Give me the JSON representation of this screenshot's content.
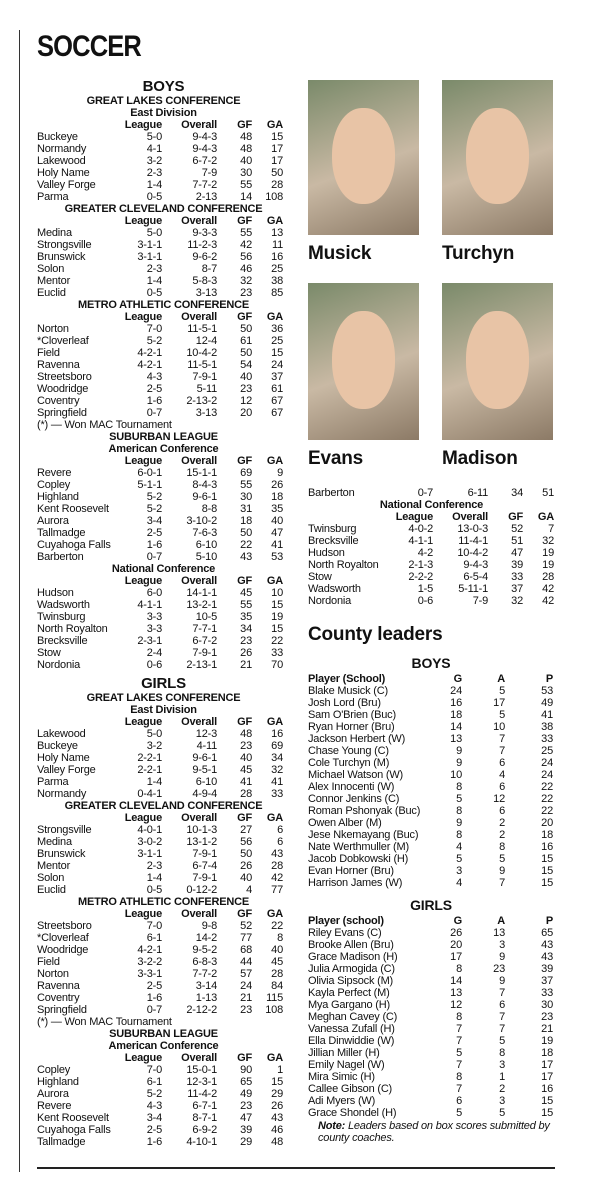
{
  "header": {
    "title": "SOCCER"
  },
  "boys": {
    "heading": "BOYS",
    "sections": [
      {
        "title": "GREAT LAKES CONFERENCE",
        "subtitle": "East Division",
        "columns": [
          "League",
          "Overall",
          "GF",
          "GA"
        ],
        "rows": [
          [
            "Buckeye",
            "5-0",
            "9-4-3",
            48,
            15
          ],
          [
            "Normandy",
            "4-1",
            "9-4-3",
            48,
            17
          ],
          [
            "Lakewood",
            "3-2",
            "6-7-2",
            40,
            17
          ],
          [
            "Holy Name",
            "2-3",
            "7-9",
            30,
            50
          ],
          [
            "Valley Forge",
            "1-4",
            "7-7-2",
            55,
            28
          ],
          [
            "Parma",
            "0-5",
            "2-13",
            14,
            108
          ]
        ]
      },
      {
        "title": "GREATER CLEVELAND CONFERENCE",
        "columns": [
          "League",
          "Overall",
          "GF",
          "GA"
        ],
        "rows": [
          [
            "Medina",
            "5-0",
            "9-3-3",
            55,
            13
          ],
          [
            "Strongsville",
            "3-1-1",
            "11-2-3",
            42,
            11
          ],
          [
            "Brunswick",
            "3-1-1",
            "9-6-2",
            56,
            16
          ],
          [
            "Solon",
            "2-3",
            "8-7",
            46,
            25
          ],
          [
            "Mentor",
            "1-4",
            "5-8-3",
            32,
            38
          ],
          [
            "Euclid",
            "0-5",
            "3-13",
            23,
            85
          ]
        ]
      },
      {
        "title": "METRO ATHLETIC CONFERENCE",
        "columns": [
          "League",
          "Overall",
          "GF",
          "GA"
        ],
        "rows": [
          [
            "Norton",
            "7-0",
            "11-5-1",
            50,
            36
          ],
          [
            "*Cloverleaf",
            "5-2",
            "12-4",
            61,
            25
          ],
          [
            "Field",
            "4-2-1",
            "10-4-2",
            50,
            15
          ],
          [
            "Ravenna",
            "4-2-1",
            "11-5-1",
            54,
            24
          ],
          [
            "Streetsboro",
            "4-3",
            "7-9-1",
            40,
            37
          ],
          [
            "Woodridge",
            "2-5",
            "5-11",
            23,
            61
          ],
          [
            "Coventry",
            "1-6",
            "2-13-2",
            12,
            67
          ],
          [
            "Springfield",
            "0-7",
            "3-13",
            20,
            67
          ]
        ],
        "footnote": "(*) — Won MAC Tournament"
      },
      {
        "title": "SUBURBAN LEAGUE",
        "subtitle": "American Conference",
        "columns": [
          "League",
          "Overall",
          "GF",
          "GA"
        ],
        "rows": [
          [
            "Revere",
            "6-0-1",
            "15-1-1",
            69,
            9
          ],
          [
            "Copley",
            "5-1-1",
            "8-4-3",
            55,
            26
          ],
          [
            "Highland",
            "5-2",
            "9-6-1",
            30,
            18
          ],
          [
            "Kent Roosevelt",
            "5-2",
            "8-8",
            31,
            35
          ],
          [
            "Aurora",
            "3-4",
            "3-10-2",
            18,
            40
          ],
          [
            "Tallmadge",
            "2-5",
            "7-6-3",
            50,
            47
          ],
          [
            "Cuyahoga Falls",
            "1-6",
            "6-10",
            22,
            41
          ],
          [
            "Barberton",
            "0-7",
            "5-10",
            43,
            53
          ]
        ]
      },
      {
        "subtitle": "National Conference",
        "columns": [
          "League",
          "Overall",
          "GF",
          "GA"
        ],
        "rows": [
          [
            "Hudson",
            "6-0",
            "14-1-1",
            45,
            10
          ],
          [
            "Wadsworth",
            "4-1-1",
            "13-2-1",
            55,
            15
          ],
          [
            "Twinsburg",
            "3-3",
            "10-5",
            35,
            19
          ],
          [
            "North Royalton",
            "3-3",
            "7-7-1",
            34,
            15
          ],
          [
            "Brecksville",
            "2-3-1",
            "6-7-2",
            23,
            22
          ],
          [
            "Stow",
            "2-4",
            "7-9-1",
            26,
            33
          ],
          [
            "Nordonia",
            "0-6",
            "2-13-1",
            21,
            70
          ]
        ]
      }
    ]
  },
  "girls": {
    "heading": "GIRLS",
    "sections": [
      {
        "title": "GREAT LAKES CONFERENCE",
        "subtitle": "East Division",
        "columns": [
          "League",
          "Overall",
          "GF",
          "GA"
        ],
        "rows": [
          [
            "Lakewood",
            "5-0",
            "12-3",
            48,
            16
          ],
          [
            "Buckeye",
            "3-2",
            "4-11",
            23,
            69
          ],
          [
            "Holy Name",
            "2-2-1",
            "9-6-1",
            40,
            34
          ],
          [
            "Valley Forge",
            "2-2-1",
            "9-5-1",
            45,
            32
          ],
          [
            "Parma",
            "1-4",
            "6-10",
            41,
            41
          ],
          [
            "Normandy",
            "0-4-1",
            "4-9-4",
            28,
            33
          ]
        ]
      },
      {
        "title": "GREATER CLEVELAND CONFERENCE",
        "columns": [
          "League",
          "Overall",
          "GF",
          "GA"
        ],
        "rows": [
          [
            "Strongsville",
            "4-0-1",
            "10-1-3",
            27,
            6
          ],
          [
            "Medina",
            "3-0-2",
            "13-1-2",
            56,
            6
          ],
          [
            "Brunswick",
            "3-1-1",
            "7-9-1",
            50,
            43
          ],
          [
            "Mentor",
            "2-3",
            "6-7-4",
            26,
            28
          ],
          [
            "Solon",
            "1-4",
            "7-9-1",
            40,
            42
          ],
          [
            "Euclid",
            "0-5",
            "0-12-2",
            4,
            77
          ]
        ]
      },
      {
        "title": "METRO ATHLETIC CONFERENCE",
        "columns": [
          "League",
          "Overall",
          "GF",
          "GA"
        ],
        "rows": [
          [
            "Streetsboro",
            "7-0",
            "9-8",
            52,
            22
          ],
          [
            "*Cloverleaf",
            "6-1",
            "14-2",
            77,
            8
          ],
          [
            "Woodridge",
            "4-2-1",
            "9-5-2",
            68,
            40
          ],
          [
            "Field",
            "3-2-2",
            "6-8-3",
            44,
            45
          ],
          [
            "Norton",
            "3-3-1",
            "7-7-2",
            57,
            28
          ],
          [
            "Ravenna",
            "2-5",
            "3-14",
            24,
            84
          ],
          [
            "Coventry",
            "1-6",
            "1-13",
            21,
            115
          ],
          [
            "Springfield",
            "0-7",
            "2-12-2",
            23,
            108
          ]
        ],
        "footnote": "(*) — Won MAC Tournament"
      },
      {
        "title": "SUBURBAN LEAGUE",
        "subtitle": "American Conference",
        "columns": [
          "League",
          "Overall",
          "GF",
          "GA"
        ],
        "rows": [
          [
            "Copley",
            "7-0",
            "15-0-1",
            90,
            1
          ],
          [
            "Highland",
            "6-1",
            "12-3-1",
            65,
            15
          ],
          [
            "Aurora",
            "5-2",
            "11-4-2",
            49,
            29
          ],
          [
            "Revere",
            "4-3",
            "6-7-1",
            23,
            26
          ],
          [
            "Kent Roosevelt",
            "3-4",
            "8-7-1",
            47,
            43
          ],
          [
            "Cuyahoga Falls",
            "2-5",
            "6-9-2",
            39,
            46
          ],
          [
            "Tallmadge",
            "1-6",
            "4-10-1",
            29,
            48
          ],
          [
            "Barberton",
            "0-7",
            "6-11",
            34,
            51
          ]
        ]
      },
      {
        "subtitle": "National Conference",
        "columns": [
          "League",
          "Overall",
          "GF",
          "GA"
        ],
        "rows": [
          [
            "Twinsburg",
            "4-0-2",
            "13-0-3",
            52,
            7
          ],
          [
            "Brecksville",
            "4-1-1",
            "11-4-1",
            51,
            32
          ],
          [
            "Hudson",
            "4-2",
            "10-4-2",
            47,
            19
          ],
          [
            "North Royalton",
            "2-1-3",
            "9-4-3",
            39,
            19
          ],
          [
            "Stow",
            "2-2-2",
            "6-5-4",
            33,
            28
          ],
          [
            "Wadsworth",
            "1-5",
            "5-11-1",
            37,
            42
          ],
          [
            "Nordonia",
            "0-6",
            "7-9",
            32,
            42
          ]
        ]
      }
    ]
  },
  "photos": [
    {
      "name": "Musick"
    },
    {
      "name": "Turchyn"
    },
    {
      "name": "Evans"
    },
    {
      "name": "Madison"
    }
  ],
  "leaders": {
    "title": "County leaders",
    "boys": {
      "heading": "BOYS",
      "columns": [
        "Player (School)",
        "G",
        "A",
        "P"
      ],
      "rows": [
        [
          "Blake Musick (C)",
          24,
          5,
          53
        ],
        [
          "Josh Lord (Bru)",
          16,
          17,
          49
        ],
        [
          "Sam O'Brien (Buc)",
          18,
          5,
          41
        ],
        [
          "Ryan Horner (Bru)",
          14,
          10,
          38
        ],
        [
          "Jackson Herbert (W)",
          13,
          7,
          33
        ],
        [
          "Chase Young (C)",
          9,
          7,
          25
        ],
        [
          "Cole Turchyn (M)",
          9,
          6,
          24
        ],
        [
          "Michael Watson (W)",
          10,
          4,
          24
        ],
        [
          "Alex Innocenti (W)",
          8,
          6,
          22
        ],
        [
          "Connor Jenkins (C)",
          5,
          12,
          22
        ],
        [
          "Roman Pshonyak (Buc)",
          8,
          6,
          22
        ],
        [
          "Owen Alber (M)",
          9,
          2,
          20
        ],
        [
          "Jese Nkemayang (Buc)",
          8,
          2,
          18
        ],
        [
          "Nate Werthmuller (M)",
          4,
          8,
          16
        ],
        [
          "Jacob Dobkowski (H)",
          5,
          5,
          15
        ],
        [
          "Evan Horner (Bru)",
          3,
          9,
          15
        ],
        [
          "Harrison James (W)",
          4,
          7,
          15
        ]
      ]
    },
    "girls": {
      "heading": "GIRLS",
      "columns": [
        "Player (school)",
        "G",
        "A",
        "P"
      ],
      "rows": [
        [
          "Riley Evans (C)",
          26,
          13,
          65
        ],
        [
          "Brooke Allen (Bru)",
          20,
          3,
          43
        ],
        [
          "Grace Madison (H)",
          17,
          9,
          43
        ],
        [
          "Julia Armogida (C)",
          8,
          23,
          39
        ],
        [
          "Olivia Sipsock (M)",
          14,
          9,
          37
        ],
        [
          "Kayla Perfect (M)",
          13,
          7,
          33
        ],
        [
          "Mya Gargano (H)",
          12,
          6,
          30
        ],
        [
          "Meghan Cavey (C)",
          8,
          7,
          23
        ],
        [
          "Vanessa Zufall (H)",
          7,
          7,
          21
        ],
        [
          "Ella Dinwiddie (W)",
          7,
          5,
          19
        ],
        [
          "Jillian Miller (H)",
          5,
          8,
          18
        ],
        [
          "Emily Nagel (W)",
          7,
          3,
          17
        ],
        [
          "Mira Simic (H)",
          8,
          1,
          17
        ],
        [
          "Callee Gibson (C)",
          7,
          2,
          16
        ],
        [
          "Adi Myers (W)",
          6,
          3,
          15
        ],
        [
          "Grace Shondel (H)",
          5,
          5,
          15
        ]
      ]
    },
    "note_label": "Note:",
    "note": "Leaders based on box scores submitted by county coaches."
  }
}
